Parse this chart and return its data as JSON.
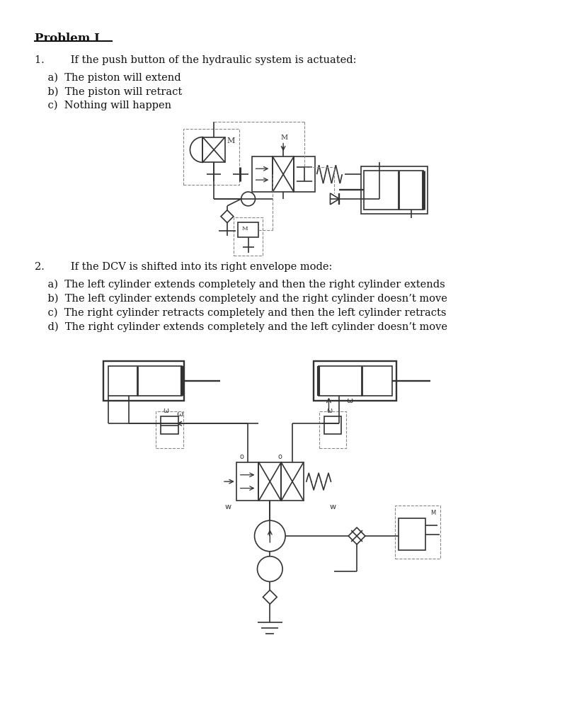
{
  "bg_color": "#ffffff",
  "title": "Problem I",
  "q1_main": "1.        If the push button of the hydraulic system is actuated:",
  "q1_a": "    a)  The piston will extend",
  "q1_b": "    b)  The piston will retract",
  "q1_c": "    c)  Nothing will happen",
  "q2_main": "2.        If the DCV is shifted into its right envelope mode:",
  "q2_a": "    a)  The left cylinder extends completely and then the right cylinder extends",
  "q2_b": "    b)  The left cylinder extends completely and the right cylinder doesn’t move",
  "q2_c": "    c)  The right cylinder retracts completely and then the left cylinder retracts",
  "q2_d": "    d)  The right cylinder extends completely and the left cylinder doesn’t move",
  "line_color": "#333333",
  "dashed_color": "#888888"
}
